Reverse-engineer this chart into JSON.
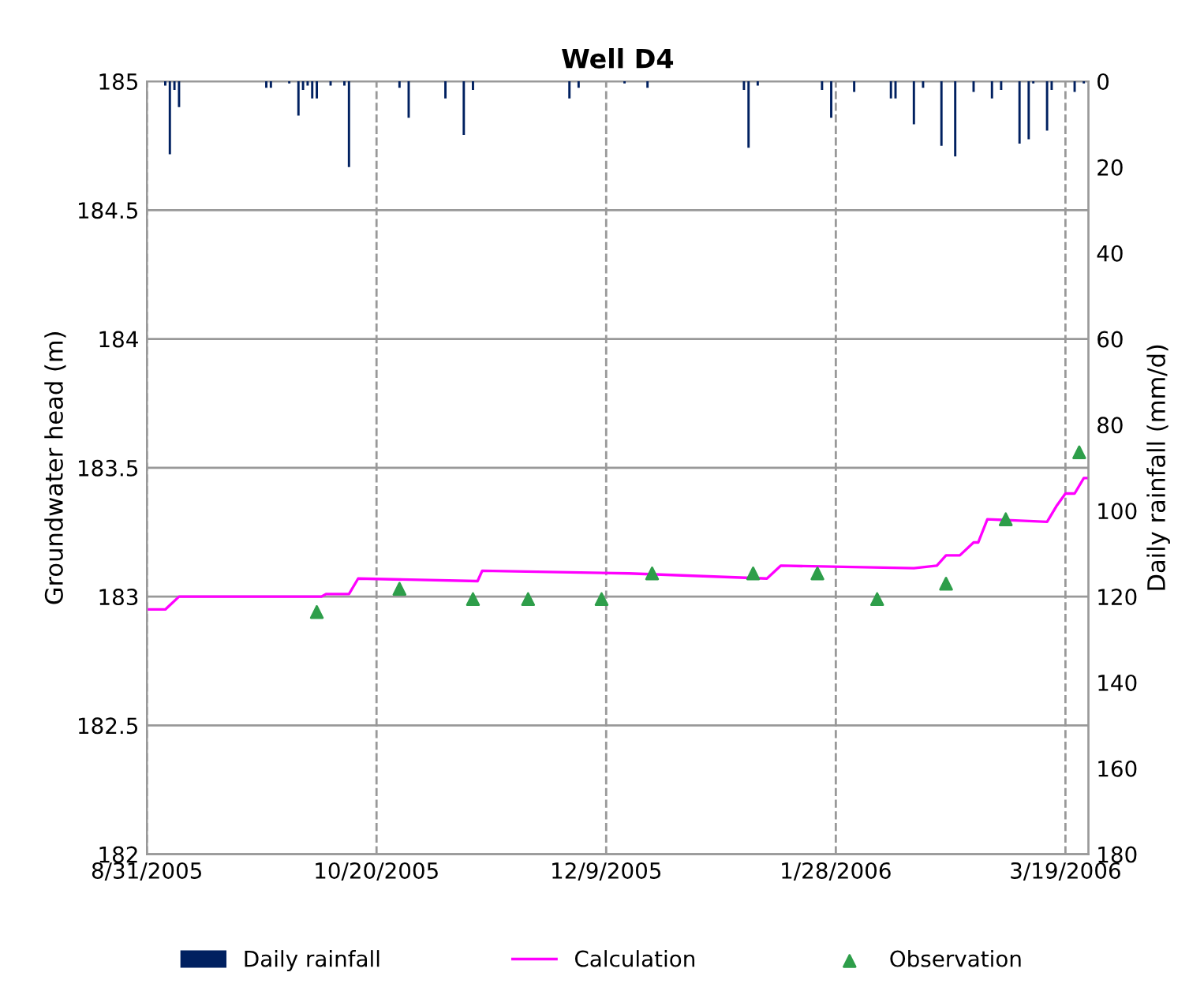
{
  "chart_data": {
    "type": "line",
    "title": "Well D4",
    "ylabel": "Groundwater head (m)",
    "y2label": "Daily rainfall (mm/d)",
    "xlim": [
      "2005-08-31",
      "2006-03-24"
    ],
    "xticks": [
      {
        "value": "2005-08-31",
        "label": "8/31/2005"
      },
      {
        "value": "2005-10-20",
        "label": "10/20/2005"
      },
      {
        "value": "2005-12-09",
        "label": "12/9/2005"
      },
      {
        "value": "2006-01-28",
        "label": "1/28/2006"
      },
      {
        "value": "2006-03-19",
        "label": "3/19/2006"
      }
    ],
    "ylim": [
      182,
      185
    ],
    "yticks": [
      182,
      182.5,
      183,
      183.5,
      184,
      184.5,
      185
    ],
    "y2lim": [
      180,
      0
    ],
    "y2ticks": [
      0,
      20,
      40,
      60,
      80,
      100,
      120,
      140,
      160,
      180
    ],
    "grid": true,
    "legend": "bottom",
    "series": [
      {
        "name": "Daily rainfall",
        "type": "bar",
        "axis": "y2",
        "color": "#002060",
        "x": [
          "2005-09-04",
          "2005-09-05",
          "2005-09-06",
          "2005-09-07",
          "2005-09-26",
          "2005-09-27",
          "2005-10-01",
          "2005-10-03",
          "2005-10-04",
          "2005-10-05",
          "2005-10-06",
          "2005-10-07",
          "2005-10-10",
          "2005-10-13",
          "2005-10-14",
          "2005-10-25",
          "2005-10-27",
          "2005-11-04",
          "2005-11-08",
          "2005-11-10",
          "2005-12-01",
          "2005-12-03",
          "2005-12-13",
          "2005-12-18",
          "2006-01-08",
          "2006-01-09",
          "2006-01-11",
          "2006-01-25",
          "2006-01-27",
          "2006-02-01",
          "2006-02-09",
          "2006-02-10",
          "2006-02-14",
          "2006-02-16",
          "2006-02-20",
          "2006-02-23",
          "2006-02-27",
          "2006-03-03",
          "2006-03-05",
          "2006-03-09",
          "2006-03-11",
          "2006-03-12",
          "2006-03-15",
          "2006-03-16",
          "2006-03-21",
          "2006-03-23"
        ],
        "values": [
          1,
          17,
          2,
          6,
          1.5,
          1.5,
          0.5,
          8,
          2,
          1,
          4,
          4,
          1,
          1,
          20,
          1.5,
          8.5,
          4,
          12.5,
          2,
          4,
          1.5,
          0.5,
          1.5,
          2,
          15.5,
          1,
          2,
          8.5,
          2.5,
          4,
          4,
          10,
          1.5,
          15,
          17.5,
          2.5,
          4,
          2,
          14.5,
          13.5,
          0.5,
          11.5,
          2,
          2.5,
          0.5
        ]
      },
      {
        "name": "Calculation",
        "color": "#ff00ff",
        "marker": "none",
        "line_style": "solid",
        "x": [
          "2005-08-31",
          "2005-09-04",
          "2005-09-07",
          "2005-10-08",
          "2005-10-09",
          "2005-10-14",
          "2005-10-16",
          "2005-11-11",
          "2005-11-12",
          "2005-12-14",
          "2006-01-13",
          "2006-01-16",
          "2006-02-14",
          "2006-02-19",
          "2006-02-21",
          "2006-02-24",
          "2006-02-27",
          "2006-02-28",
          "2006-03-02",
          "2006-03-15",
          "2006-03-17",
          "2006-03-19",
          "2006-03-21",
          "2006-03-23",
          "2006-03-24"
        ],
        "values": [
          182.95,
          182.95,
          183.0,
          183.0,
          183.01,
          183.01,
          183.07,
          183.06,
          183.1,
          183.09,
          183.07,
          183.12,
          183.11,
          183.12,
          183.16,
          183.16,
          183.21,
          183.21,
          183.3,
          183.29,
          183.35,
          183.4,
          183.4,
          183.46,
          183.46
        ]
      },
      {
        "name": "Observation",
        "type": "scatter",
        "color": "#2e9e4a",
        "marker": "triangle",
        "x": [
          "2005-10-07",
          "2005-10-25",
          "2005-11-10",
          "2005-11-22",
          "2005-12-08",
          "2005-12-19",
          "2006-01-10",
          "2006-01-24",
          "2006-02-06",
          "2006-02-21",
          "2006-03-06",
          "2006-03-22"
        ],
        "values": [
          182.94,
          183.03,
          182.99,
          182.99,
          182.99,
          183.09,
          183.09,
          183.09,
          182.99,
          183.05,
          183.3,
          183.56
        ]
      }
    ]
  }
}
